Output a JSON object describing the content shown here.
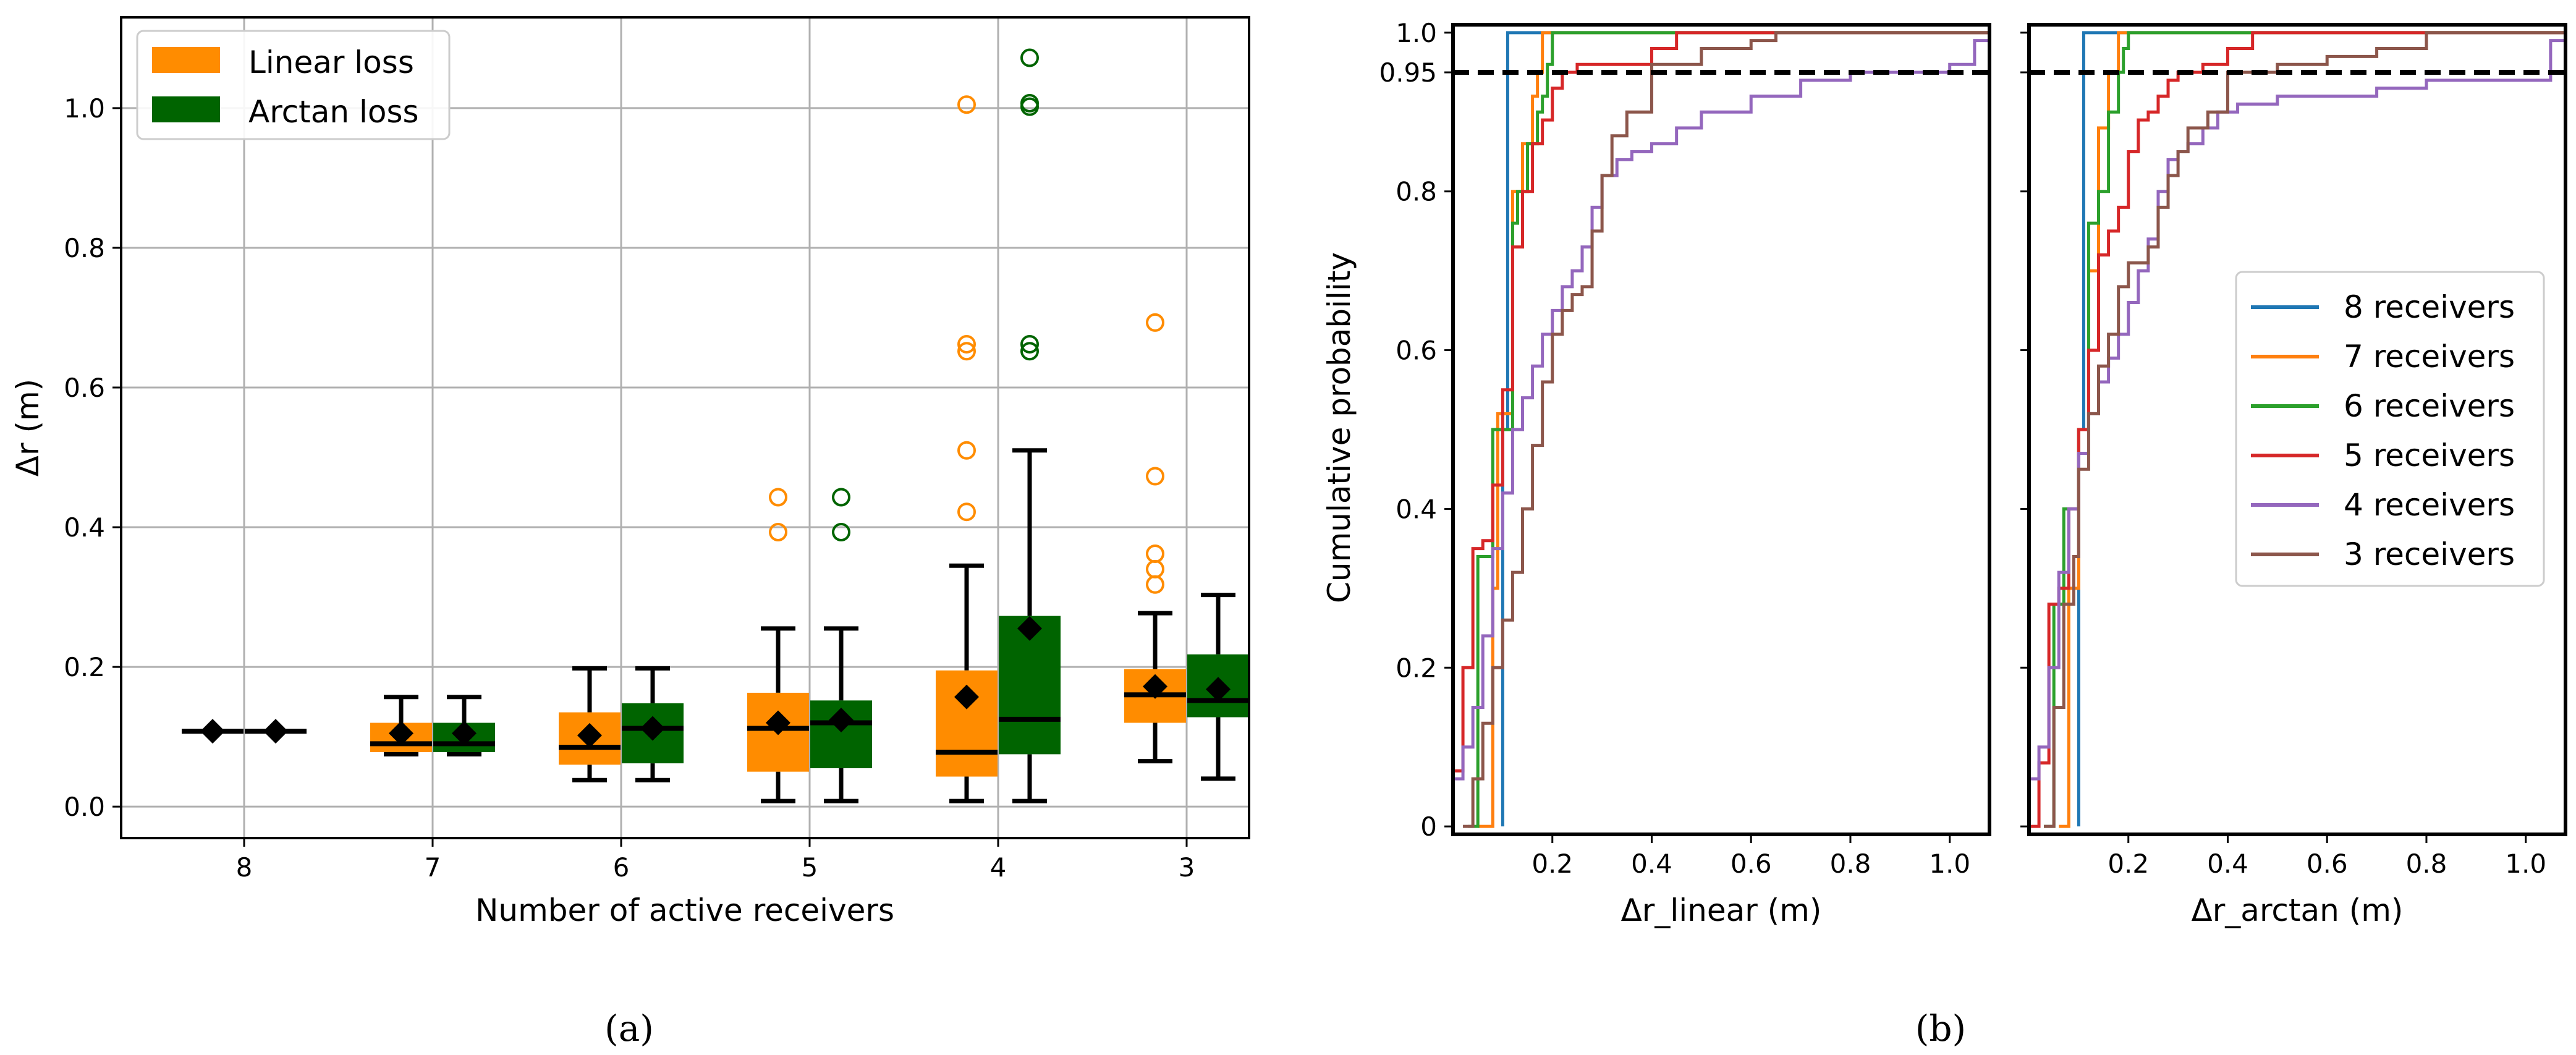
{
  "colors": {
    "linear": "#ff8c00",
    "arctan": "#006400",
    "receivers": [
      "#1f77b4",
      "#ff7f0e",
      "#2ca02c",
      "#d62728",
      "#9467bd",
      "#8c564b"
    ]
  },
  "panel_labels": {
    "a": "(a)",
    "b": "(b)"
  },
  "chart_data": [
    {
      "type": "box",
      "panel": "(a)",
      "xlabel": "Number of active receivers",
      "ylabel": "Δr (m)",
      "ylim": [
        -0.045,
        1.13
      ],
      "yticks": [
        0.0,
        0.2,
        0.4,
        0.6,
        0.8,
        1.0
      ],
      "ytick_labels": [
        "0.0",
        "0.2",
        "0.4",
        "0.6",
        "0.8",
        "1.0"
      ],
      "categories": [
        "8",
        "7",
        "6",
        "5",
        "4",
        "3"
      ],
      "grid": true,
      "legend": {
        "position": "top-left",
        "entries": [
          "Linear loss",
          "Arctan loss"
        ]
      },
      "series": [
        {
          "name": "Linear loss",
          "boxes": [
            {
              "q1": 0.108,
              "median": 0.108,
              "q3": 0.108,
              "whislo": 0.108,
              "whishi": 0.108,
              "mean": 0.108,
              "fliers": []
            },
            {
              "q1": 0.078,
              "median": 0.09,
              "q3": 0.12,
              "whislo": 0.075,
              "whishi": 0.157,
              "mean": 0.105,
              "fliers": []
            },
            {
              "q1": 0.06,
              "median": 0.085,
              "q3": 0.135,
              "whislo": 0.038,
              "whishi": 0.198,
              "mean": 0.102,
              "fliers": []
            },
            {
              "q1": 0.05,
              "median": 0.112,
              "q3": 0.163,
              "whislo": 0.008,
              "whishi": 0.255,
              "mean": 0.12,
              "fliers": [
                0.393,
                0.443
              ]
            },
            {
              "q1": 0.043,
              "median": 0.078,
              "q3": 0.195,
              "whislo": 0.008,
              "whishi": 0.345,
              "mean": 0.157,
              "fliers": [
                0.422,
                0.51,
                0.652,
                0.662,
                1.005
              ]
            },
            {
              "q1": 0.12,
              "median": 0.16,
              "q3": 0.197,
              "whislo": 0.065,
              "whishi": 0.277,
              "mean": 0.172,
              "fliers": [
                0.318,
                0.34,
                0.362,
                0.473,
                0.693
              ]
            }
          ]
        },
        {
          "name": "Arctan loss",
          "boxes": [
            {
              "q1": 0.108,
              "median": 0.108,
              "q3": 0.108,
              "whislo": 0.108,
              "whishi": 0.108,
              "mean": 0.108,
              "fliers": []
            },
            {
              "q1": 0.078,
              "median": 0.09,
              "q3": 0.12,
              "whislo": 0.075,
              "whishi": 0.157,
              "mean": 0.105,
              "fliers": []
            },
            {
              "q1": 0.062,
              "median": 0.112,
              "q3": 0.148,
              "whislo": 0.038,
              "whishi": 0.198,
              "mean": 0.112,
              "fliers": []
            },
            {
              "q1": 0.055,
              "median": 0.12,
              "q3": 0.152,
              "whislo": 0.008,
              "whishi": 0.255,
              "mean": 0.124,
              "fliers": [
                0.393,
                0.443
              ]
            },
            {
              "q1": 0.075,
              "median": 0.125,
              "q3": 0.273,
              "whislo": 0.008,
              "whishi": 0.51,
              "mean": 0.255,
              "fliers": [
                0.652,
                0.662,
                1.002,
                1.007,
                1.072
              ]
            },
            {
              "q1": 0.128,
              "median": 0.152,
              "q3": 0.218,
              "whislo": 0.04,
              "whishi": 0.303,
              "mean": 0.168,
              "fliers": []
            }
          ]
        }
      ]
    },
    {
      "type": "line",
      "panel": "(b)",
      "xlabel": "Δr_linear (m)",
      "ylabel": "Cumulative probability",
      "xlim": [
        0.0,
        1.08
      ],
      "ylim": [
        -0.01,
        1.01
      ],
      "xticks": [
        0.2,
        0.4,
        0.6,
        0.8,
        1.0
      ],
      "xtick_labels": [
        "0.2",
        "0.4",
        "0.6",
        "0.8",
        "1.0"
      ],
      "yticks": [
        0,
        0.2,
        0.4,
        0.6,
        0.8,
        0.95,
        1.0
      ],
      "ytick_labels": [
        "0",
        "0.2",
        "0.4",
        "0.6",
        "0.8",
        "0.95",
        "1.0"
      ],
      "reference_line": 0.95,
      "grid": false,
      "series": [
        {
          "name": "8 receivers",
          "x": [
            0.1,
            0.1,
            0.11,
            0.11,
            1.08
          ],
          "y": [
            0,
            0.5,
            0.5,
            1.0,
            1.0
          ]
        },
        {
          "name": "7 receivers",
          "x": [
            0.05,
            0.07,
            0.08,
            0.09,
            0.1,
            0.12,
            0.14,
            0.16,
            0.17,
            0.18,
            1.08
          ],
          "y": [
            0,
            0,
            0.3,
            0.52,
            0.52,
            0.8,
            0.86,
            0.92,
            0.95,
            1.0,
            1.0
          ]
        },
        {
          "name": "6 receivers",
          "x": [
            0.03,
            0.05,
            0.08,
            0.1,
            0.12,
            0.13,
            0.15,
            0.17,
            0.18,
            0.19,
            0.2,
            1.08
          ],
          "y": [
            0,
            0.34,
            0.5,
            0.5,
            0.76,
            0.8,
            0.86,
            0.9,
            0.92,
            0.96,
            1.0,
            1.0
          ]
        },
        {
          "name": "5 receivers",
          "x": [
            0.0,
            0.02,
            0.04,
            0.06,
            0.08,
            0.1,
            0.12,
            0.14,
            0.16,
            0.18,
            0.2,
            0.22,
            0.25,
            0.29,
            0.35,
            0.4,
            0.45,
            1.08
          ],
          "y": [
            0.07,
            0.2,
            0.35,
            0.36,
            0.43,
            0.55,
            0.73,
            0.8,
            0.86,
            0.89,
            0.93,
            0.95,
            0.96,
            0.96,
            0.96,
            0.98,
            1.0,
            1.0
          ]
        },
        {
          "name": "4 receivers",
          "x": [
            0.0,
            0.02,
            0.04,
            0.06,
            0.08,
            0.1,
            0.12,
            0.14,
            0.16,
            0.18,
            0.2,
            0.22,
            0.24,
            0.26,
            0.28,
            0.3,
            0.33,
            0.36,
            0.4,
            0.45,
            0.5,
            0.55,
            0.6,
            0.7,
            0.8,
            0.9,
            1.0,
            1.05,
            1.08
          ],
          "y": [
            0.06,
            0.1,
            0.15,
            0.24,
            0.35,
            0.42,
            0.5,
            0.54,
            0.58,
            0.62,
            0.65,
            0.68,
            0.7,
            0.73,
            0.78,
            0.82,
            0.84,
            0.85,
            0.86,
            0.88,
            0.9,
            0.9,
            0.92,
            0.94,
            0.95,
            0.95,
            0.96,
            0.99,
            1.0
          ]
        },
        {
          "name": "3 receivers",
          "x": [
            0.02,
            0.04,
            0.06,
            0.08,
            0.1,
            0.12,
            0.14,
            0.16,
            0.18,
            0.2,
            0.22,
            0.24,
            0.26,
            0.28,
            0.3,
            0.32,
            0.35,
            0.4,
            0.5,
            0.6,
            0.65,
            0.8,
            1.0,
            1.08
          ],
          "y": [
            0.0,
            0.06,
            0.13,
            0.2,
            0.26,
            0.32,
            0.4,
            0.48,
            0.56,
            0.62,
            0.65,
            0.67,
            0.68,
            0.75,
            0.82,
            0.87,
            0.9,
            0.96,
            0.98,
            0.99,
            1.0,
            1.0,
            1.0,
            1.0
          ]
        }
      ]
    },
    {
      "type": "line",
      "panel": "(b)",
      "xlabel": "Δr_arctan (m)",
      "ylabel": "",
      "xlim": [
        0.0,
        1.08
      ],
      "ylim": [
        -0.01,
        1.01
      ],
      "xticks": [
        0.2,
        0.4,
        0.6,
        0.8,
        1.0
      ],
      "xtick_labels": [
        "0.2",
        "0.4",
        "0.6",
        "0.8",
        "1.0"
      ],
      "reference_line": 0.95,
      "grid": false,
      "legend": {
        "position": "center-right",
        "entries": [
          "8 receivers",
          "7 receivers",
          "6 receivers",
          "5 receivers",
          "4 receivers",
          "3 receivers"
        ]
      },
      "series": [
        {
          "name": "8 receivers",
          "x": [
            0.1,
            0.1,
            0.11,
            0.11,
            1.08
          ],
          "y": [
            0,
            0.5,
            0.5,
            1.0,
            1.0
          ]
        },
        {
          "name": "7 receivers",
          "x": [
            0.06,
            0.08,
            0.1,
            0.12,
            0.14,
            0.16,
            0.18,
            1.08
          ],
          "y": [
            0,
            0.3,
            0.5,
            0.7,
            0.88,
            0.95,
            1.0,
            1.0
          ]
        },
        {
          "name": "6 receivers",
          "x": [
            0.03,
            0.05,
            0.07,
            0.1,
            0.12,
            0.14,
            0.16,
            0.18,
            0.19,
            0.2,
            1.08
          ],
          "y": [
            0,
            0.28,
            0.4,
            0.5,
            0.76,
            0.8,
            0.9,
            0.95,
            0.98,
            1.0,
            1.0
          ]
        },
        {
          "name": "5 receivers",
          "x": [
            0.0,
            0.02,
            0.04,
            0.06,
            0.08,
            0.1,
            0.12,
            0.14,
            0.16,
            0.18,
            0.2,
            0.22,
            0.24,
            0.26,
            0.28,
            0.3,
            0.35,
            0.4,
            0.45,
            1.08
          ],
          "y": [
            0.0,
            0.08,
            0.28,
            0.3,
            0.4,
            0.5,
            0.6,
            0.72,
            0.75,
            0.78,
            0.85,
            0.89,
            0.9,
            0.92,
            0.94,
            0.95,
            0.96,
            0.98,
            1.0,
            1.0
          ]
        },
        {
          "name": "4 receivers",
          "x": [
            0.0,
            0.02,
            0.04,
            0.06,
            0.08,
            0.1,
            0.12,
            0.14,
            0.16,
            0.18,
            0.2,
            0.22,
            0.24,
            0.26,
            0.28,
            0.3,
            0.32,
            0.35,
            0.38,
            0.42,
            0.5,
            0.6,
            0.7,
            0.8,
            0.9,
            1.0,
            1.05,
            1.08
          ],
          "y": [
            0.06,
            0.1,
            0.2,
            0.32,
            0.4,
            0.47,
            0.52,
            0.56,
            0.59,
            0.62,
            0.66,
            0.7,
            0.74,
            0.8,
            0.84,
            0.85,
            0.86,
            0.88,
            0.9,
            0.91,
            0.92,
            0.92,
            0.93,
            0.94,
            0.94,
            0.94,
            0.99,
            1.0
          ]
        },
        {
          "name": "3 receivers",
          "x": [
            0.03,
            0.05,
            0.07,
            0.09,
            0.1,
            0.12,
            0.14,
            0.16,
            0.18,
            0.2,
            0.22,
            0.24,
            0.26,
            0.28,
            0.3,
            0.32,
            0.36,
            0.4,
            0.5,
            0.6,
            0.7,
            0.8,
            1.0,
            1.08
          ],
          "y": [
            0.0,
            0.15,
            0.28,
            0.34,
            0.45,
            0.52,
            0.58,
            0.62,
            0.68,
            0.71,
            0.71,
            0.73,
            0.78,
            0.82,
            0.85,
            0.88,
            0.9,
            0.95,
            0.96,
            0.97,
            0.98,
            1.0,
            1.0,
            1.0
          ]
        }
      ]
    }
  ]
}
